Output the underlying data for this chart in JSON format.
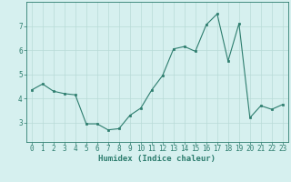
{
  "x": [
    0,
    1,
    2,
    3,
    4,
    5,
    6,
    7,
    8,
    9,
    10,
    11,
    12,
    13,
    14,
    15,
    16,
    17,
    18,
    19,
    20,
    21,
    22,
    23
  ],
  "y": [
    4.35,
    4.6,
    4.3,
    4.2,
    4.15,
    2.95,
    2.95,
    2.7,
    2.75,
    3.3,
    3.6,
    4.35,
    4.95,
    6.05,
    6.15,
    5.95,
    7.05,
    7.5,
    5.55,
    7.1,
    3.2,
    3.7,
    3.55,
    3.75
  ],
  "xlabel": "Humidex (Indice chaleur)",
  "line_color": "#2d7d6e",
  "marker_color": "#2d7d6e",
  "bg_color": "#d6f0ef",
  "grid_color": "#b8dbd8",
  "axis_color": "#2d7d6e",
  "tick_color": "#2d7d6e",
  "label_color": "#2d7d6e",
  "ylim": [
    2.2,
    8.0
  ],
  "yticks": [
    3,
    4,
    5,
    6,
    7
  ],
  "xlim": [
    -0.5,
    23.5
  ],
  "xticks": [
    0,
    1,
    2,
    3,
    4,
    5,
    6,
    7,
    8,
    9,
    10,
    11,
    12,
    13,
    14,
    15,
    16,
    17,
    18,
    19,
    20,
    21,
    22,
    23
  ],
  "xlabel_fontsize": 6.5,
  "tick_fontsize": 5.5
}
